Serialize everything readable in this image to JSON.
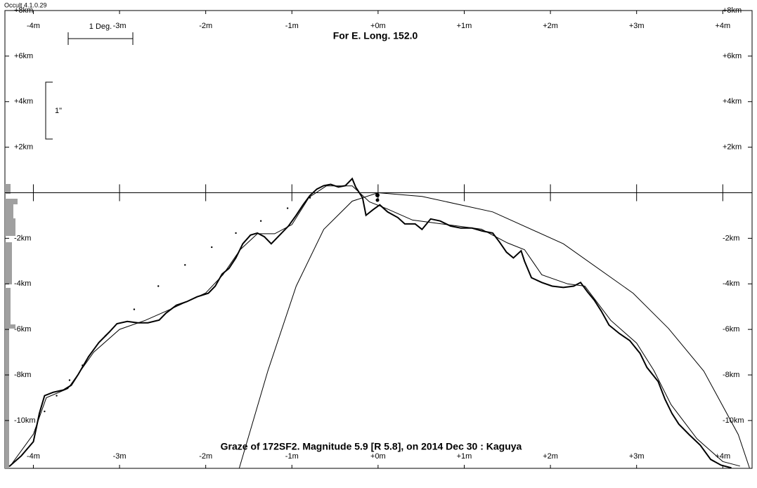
{
  "window_title": "Occult 4.1.0.29",
  "chart_data": {
    "type": "line",
    "title": "For E. Long. 152.0",
    "caption": "Graze of  172SF2.  Magnitude 5.9 [R 5.8],  on 2014 Dec 30  :  Kaguya",
    "scale_labels": [
      "1 Deg.",
      "1\""
    ],
    "xlim": [
      -4.33,
      4.34
    ],
    "ylim": [
      -12.1,
      8
    ],
    "xticks": [
      {
        "value": -4,
        "label": "-4m"
      },
      {
        "value": -3,
        "label": "-3m"
      },
      {
        "value": -2,
        "label": "-2m"
      },
      {
        "value": -1,
        "label": "-1m"
      },
      {
        "value": 0,
        "label": "+0m"
      },
      {
        "value": 1,
        "label": "+1m"
      },
      {
        "value": 2,
        "label": "+2m"
      },
      {
        "value": 3,
        "label": "+3m"
      },
      {
        "value": 4,
        "label": "+4m"
      }
    ],
    "yticks": [
      {
        "value": 8,
        "label": "+8km"
      },
      {
        "value": 6,
        "label": "+6km"
      },
      {
        "value": 4,
        "label": "+4km"
      },
      {
        "value": 2,
        "label": "+2km"
      },
      {
        "value": -2,
        "label": "-2km"
      },
      {
        "value": -4,
        "label": "-4km"
      },
      {
        "value": -6,
        "label": "-6km"
      },
      {
        "value": -8,
        "label": "-8km"
      },
      {
        "value": -10,
        "label": "-10km"
      }
    ],
    "series": [
      {
        "color": "#000000",
        "style": "thick",
        "x": [
          -4.28,
          -4.14,
          -4.0,
          -3.93,
          -3.87,
          -3.77,
          -3.65,
          -3.56,
          -3.48,
          -3.36,
          -3.24,
          -3.12,
          -3.03,
          -2.91,
          -2.79,
          -2.67,
          -2.54,
          -2.46,
          -2.34,
          -2.22,
          -2.1,
          -1.97,
          -1.89,
          -1.81,
          -1.73,
          -1.65,
          -1.57,
          -1.48,
          -1.4,
          -1.32,
          -1.24,
          -1.16,
          -1.04,
          -0.95,
          -0.87,
          -0.79,
          -0.71,
          -0.63,
          -0.55,
          -0.46,
          -0.38,
          -0.3,
          -0.26,
          -0.18,
          -0.14,
          -0.06,
          0.02,
          0.11,
          0.23,
          0.31,
          0.43,
          0.51,
          0.61,
          0.72,
          0.84,
          0.96,
          1.09,
          1.21,
          1.33,
          1.41,
          1.49,
          1.57,
          1.66,
          1.7,
          1.78,
          1.9,
          2.02,
          2.15,
          2.27,
          2.35,
          2.43,
          2.51,
          2.59,
          2.68,
          2.8,
          2.92,
          3.04,
          3.12,
          3.25,
          3.33,
          3.41,
          3.49,
          3.61,
          3.74,
          3.86,
          3.98,
          4.1
        ],
        "values": [
          -12.02,
          -11.55,
          -10.93,
          -9.69,
          -8.91,
          -8.76,
          -8.66,
          -8.45,
          -7.98,
          -7.2,
          -6.58,
          -6.12,
          -5.75,
          -5.65,
          -5.71,
          -5.71,
          -5.59,
          -5.28,
          -4.94,
          -4.78,
          -4.57,
          -4.41,
          -4.1,
          -3.57,
          -3.32,
          -2.86,
          -2.24,
          -1.86,
          -1.77,
          -1.93,
          -2.24,
          -1.93,
          -1.46,
          -0.99,
          -0.53,
          -0.12,
          0.16,
          0.31,
          0.37,
          0.25,
          0.31,
          0.62,
          0.25,
          -0.22,
          -0.99,
          -0.75,
          -0.53,
          -0.84,
          -1.09,
          -1.37,
          -1.37,
          -1.61,
          -1.15,
          -1.24,
          -1.46,
          -1.55,
          -1.55,
          -1.68,
          -1.77,
          -2.17,
          -2.61,
          -2.86,
          -2.55,
          -3.01,
          -3.73,
          -3.94,
          -4.1,
          -4.16,
          -4.1,
          -3.94,
          -4.35,
          -4.72,
          -5.19,
          -5.81,
          -6.18,
          -6.49,
          -7.05,
          -7.67,
          -8.29,
          -9.07,
          -9.69,
          -10.16,
          -10.62,
          -11.09,
          -11.71,
          -11.96,
          -12.08
        ]
      },
      {
        "color": "#000000",
        "style": "thin",
        "x": [
          -4.25,
          -4.0,
          -3.85,
          -3.6,
          -3.3,
          -3.0,
          -2.7,
          -2.4,
          -2.0,
          -1.8,
          -1.6,
          -1.4,
          -1.2,
          -1.0,
          -0.8,
          -0.6,
          -0.3,
          -0.1,
          0.1,
          0.4,
          0.8,
          1.2,
          1.5,
          1.7,
          1.9,
          2.2,
          2.4,
          2.7,
          3.0,
          3.2,
          3.4,
          3.7,
          4.0,
          4.2
        ],
        "values": [
          -11.9,
          -10.6,
          -9.0,
          -8.6,
          -7.0,
          -6.0,
          -5.6,
          -5.1,
          -4.4,
          -3.6,
          -2.5,
          -1.8,
          -1.8,
          -1.4,
          -0.2,
          0.3,
          0.3,
          -0.4,
          -0.7,
          -1.2,
          -1.4,
          -1.6,
          -2.2,
          -2.5,
          -3.6,
          -4.0,
          -4.1,
          -5.6,
          -6.6,
          -7.8,
          -9.3,
          -10.8,
          -11.8,
          -12.0
        ]
      },
      {
        "color": "#000000",
        "style": "thin",
        "x": [
          -1.61,
          -1.28,
          -0.95,
          -0.63,
          -0.3,
          0,
          0.51,
          1.33,
          2.15,
          2.96,
          3.37,
          3.78,
          4.18,
          4.31
        ],
        "values": [
          -12.08,
          -7.83,
          -4.1,
          -1.61,
          -0.37,
          0,
          -0.16,
          -0.84,
          -2.24,
          -4.41,
          -5.96,
          -7.83,
          -10.62,
          -12.08
        ]
      },
      {
        "color": "#000000",
        "style": "dots",
        "x": [
          -3.87,
          -3.73,
          -3.58,
          -3.43,
          -3.16,
          -2.83,
          -2.55,
          -2.24,
          -1.93,
          -1.65,
          -1.36,
          -1.05,
          -0.79
        ],
        "values": [
          -9.6,
          -8.91,
          -8.23,
          -7.58,
          -6.27,
          -5.12,
          -4.1,
          -3.17,
          -2.39,
          -1.77,
          -1.24,
          -0.68,
          -0.22
        ]
      }
    ]
  }
}
